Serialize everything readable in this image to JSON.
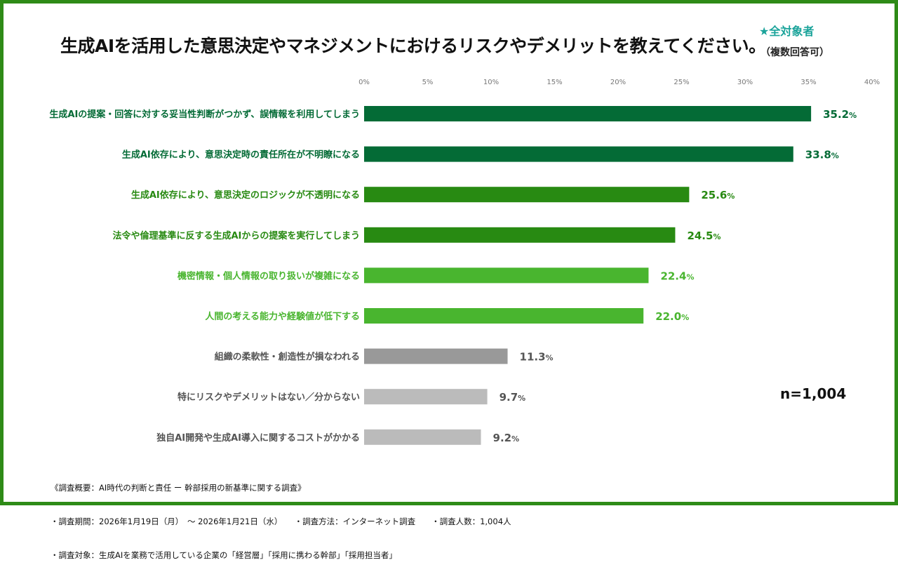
{
  "title": "生成AIを活用した意思決定やマネジメントにおけるリスクやデメリットを教えてください。",
  "audience": "★全対象者",
  "answer_type": "（複数回答可）",
  "sample_size": "n=1,004",
  "colors": {
    "border": "#2e8b17",
    "dark_green": "#046b36",
    "mid_green": "#288a12",
    "light_green": "#49b52f",
    "dark_gray": "#999999",
    "light_gray": "#bbbbbb",
    "audience": "#1aa39a"
  },
  "chart_data": {
    "type": "bar",
    "orientation": "horizontal",
    "categories": [
      "生成AIの提案・回答に対する妥当性判断がつかず、誤情報を利用してしまう",
      "生成AI依存により、意思決定時の責任所在が不明瞭になる",
      "生成AI依存により、意思決定のロジックが不透明になる",
      "法令や倫理基準に反する生成AIからの提案を実行してしまう",
      "機密情報・個人情報の取り扱いが複雑になる",
      "人間の考える能力や経験値が低下する",
      "組織の柔軟性・創造性が損なわれる",
      "特にリスクやデメリットはない／分からない",
      "独自AI開発や生成AI導入に関するコストがかかる"
    ],
    "values": [
      35.2,
      33.8,
      25.6,
      24.5,
      22.4,
      22.0,
      11.3,
      9.7,
      9.2
    ],
    "value_labels": [
      "35.2",
      "33.8",
      "25.6",
      "24.5",
      "22.4",
      "22.0",
      "11.3",
      "9.7",
      "9.2"
    ],
    "unit": "%",
    "bar_colors": [
      "#046b36",
      "#046b36",
      "#288a12",
      "#288a12",
      "#49b52f",
      "#49b52f",
      "#999999",
      "#bbbbbb",
      "#bbbbbb"
    ],
    "label_colors": [
      "#046b36",
      "#046b36",
      "#288a12",
      "#288a12",
      "#49b52f",
      "#49b52f",
      "#555555",
      "#555555",
      "#555555"
    ],
    "xticks": [
      "0%",
      "5%",
      "10%",
      "15%",
      "20%",
      "25%",
      "30%",
      "35%",
      "40%"
    ],
    "xlim": [
      0,
      40
    ],
    "grid": false
  },
  "notes": [
    "《調査概要：AI時代の判断と責任 ー 幹部採用の新基準に関する調査》",
    "・調査期間：2026年1月19日（月）　〜 2026年1月21日（水）　　・調査方法：インターネット調査　　・調査人数：1,004人",
    "・調査対象：生成AIを業務で活用している企業の「経営層」「採用に携わる幹部」「採用担当者」"
  ]
}
